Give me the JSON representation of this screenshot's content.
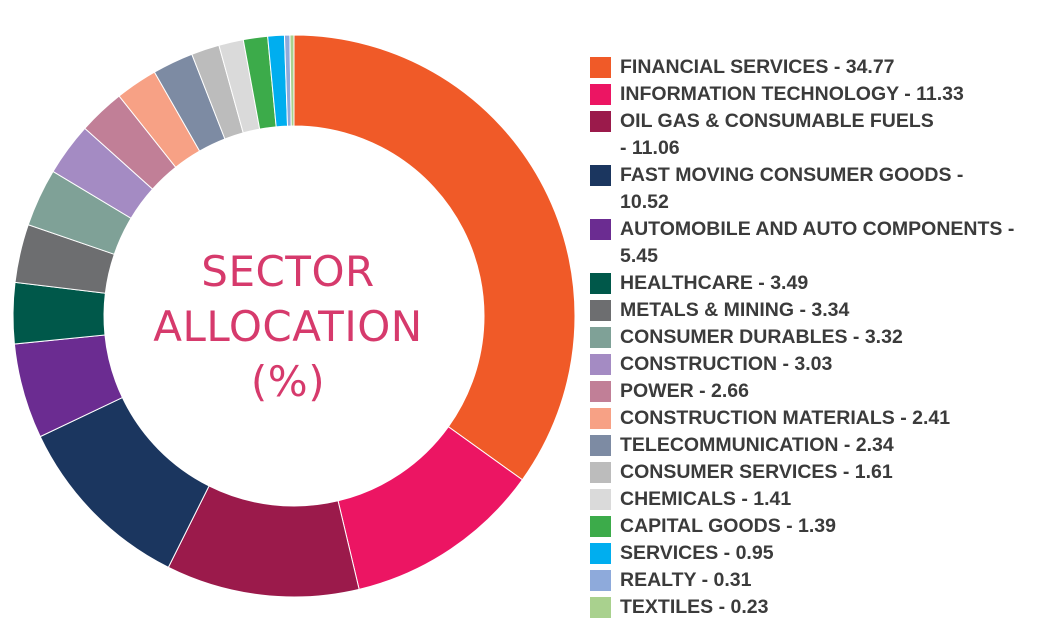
{
  "chart_data": {
    "type": "pie",
    "title": "",
    "center_label": [
      "SECTOR",
      "ALLOCATION",
      "(%)"
    ],
    "legend_position": "right",
    "slices": [
      {
        "name": "FINANCIAL SERVICES",
        "value": 34.77,
        "color": "#f05a28",
        "label_lines": [
          "FINANCIAL SERVICES - 34.77"
        ]
      },
      {
        "name": "INFORMATION TECHNOLOGY",
        "value": 11.33,
        "color": "#ec1563",
        "label_lines": [
          "INFORMATION TECHNOLOGY - 11.33"
        ]
      },
      {
        "name": "OIL GAS & CONSUMABLE FUELS",
        "value": 11.06,
        "color": "#9b1a4b",
        "label_lines": [
          "OIL GAS & CONSUMABLE FUELS",
          "- 11.06"
        ]
      },
      {
        "name": "FAST MOVING CONSUMER GOODS",
        "value": 10.52,
        "color": "#1b365f",
        "label_lines": [
          "FAST MOVING CONSUMER GOODS -",
          "10.52"
        ]
      },
      {
        "name": "AUTOMOBILE AND AUTO COMPONENTS",
        "value": 5.45,
        "color": "#6b2c91",
        "label_lines": [
          "AUTOMOBILE AND AUTO COMPONENTS -",
          "5.45"
        ]
      },
      {
        "name": "HEALTHCARE",
        "value": 3.49,
        "color": "#00584a",
        "label_lines": [
          "HEALTHCARE - 3.49"
        ]
      },
      {
        "name": "METALS & MINING",
        "value": 3.34,
        "color": "#6d6e70",
        "label_lines": [
          "METALS & MINING - 3.34"
        ]
      },
      {
        "name": "CONSUMER DURABLES",
        "value": 3.32,
        "color": "#7fa197",
        "label_lines": [
          "CONSUMER DURABLES - 3.32"
        ]
      },
      {
        "name": "CONSTRUCTION",
        "value": 3.03,
        "color": "#a48bc3",
        "label_lines": [
          "CONSTRUCTION - 3.03"
        ]
      },
      {
        "name": "POWER",
        "value": 2.66,
        "color": "#c17f97",
        "label_lines": [
          "POWER - 2.66"
        ]
      },
      {
        "name": "CONSTRUCTION MATERIALS",
        "value": 2.41,
        "color": "#f7a185",
        "label_lines": [
          "CONSTRUCTION MATERIALS - 2.41"
        ]
      },
      {
        "name": "TELECOMMUNICATION",
        "value": 2.34,
        "color": "#7d8ba3",
        "label_lines": [
          "TELECOMMUNICATION - 2.34"
        ]
      },
      {
        "name": "CONSUMER SERVICES",
        "value": 1.61,
        "color": "#bcbcbc",
        "label_lines": [
          "CONSUMER SERVICES - 1.61"
        ]
      },
      {
        "name": "CHEMICALS",
        "value": 1.41,
        "color": "#dadada",
        "label_lines": [
          "CHEMICALS  - 1.41"
        ]
      },
      {
        "name": "CAPITAL GOODS",
        "value": 1.39,
        "color": "#3cab4a",
        "label_lines": [
          "CAPITAL GOODS  - 1.39"
        ]
      },
      {
        "name": "SERVICES",
        "value": 0.95,
        "color": "#00aeef",
        "label_lines": [
          "SERVICES  - 0.95"
        ]
      },
      {
        "name": "REALTY",
        "value": 0.31,
        "color": "#8eaadb",
        "label_lines": [
          "REALTY  - 0.31"
        ]
      },
      {
        "name": "TEXTILES",
        "value": 0.23,
        "color": "#a9d18e",
        "label_lines": [
          "TEXTILES  - 0.23"
        ]
      }
    ]
  }
}
